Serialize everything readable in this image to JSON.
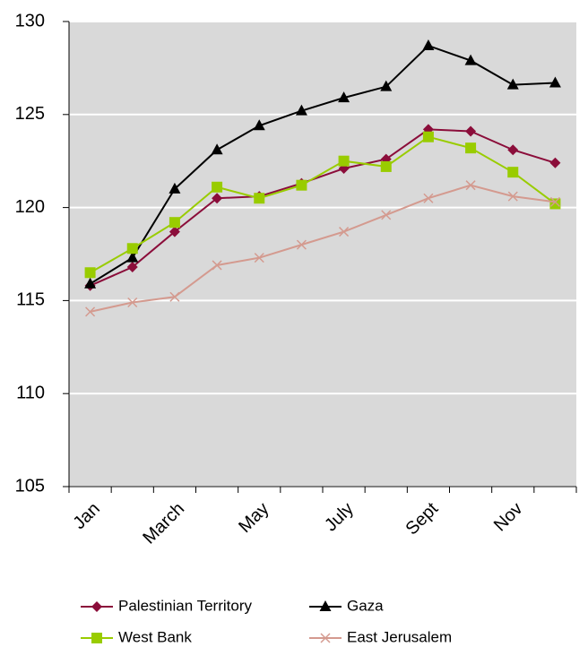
{
  "chart_data": {
    "type": "line",
    "categories": [
      "Jan",
      null,
      "March",
      null,
      "May",
      null,
      "July",
      null,
      "Sept",
      null,
      "Nov",
      null
    ],
    "series": [
      {
        "name": "Palestinian Territory",
        "color": "#8b0d3a",
        "marker": "diamond",
        "values": [
          115.8,
          116.8,
          118.7,
          120.5,
          120.6,
          121.3,
          122.1,
          122.6,
          124.2,
          124.1,
          123.1,
          122.4
        ]
      },
      {
        "name": "Gaza",
        "color": "#000000",
        "marker": "triangle",
        "values": [
          115.9,
          117.3,
          121.0,
          123.1,
          124.4,
          125.2,
          125.9,
          126.5,
          128.7,
          127.9,
          126.6,
          126.7
        ]
      },
      {
        "name": "West Bank",
        "color": "#99cc00",
        "marker": "square",
        "values": [
          116.5,
          117.8,
          119.2,
          121.1,
          120.5,
          121.2,
          122.5,
          122.2,
          123.8,
          123.2,
          121.9,
          120.2
        ]
      },
      {
        "name": "East Jerusalem",
        "color": "#d49a8f",
        "marker": "x",
        "values": [
          114.4,
          114.9,
          115.2,
          116.9,
          117.3,
          118.0,
          118.7,
          119.6,
          120.5,
          121.2,
          120.6,
          120.3
        ]
      }
    ],
    "ylim": [
      105,
      130
    ],
    "yticks": [
      105,
      110,
      115,
      120,
      125,
      130
    ],
    "grid": true,
    "legend": "bottom"
  }
}
